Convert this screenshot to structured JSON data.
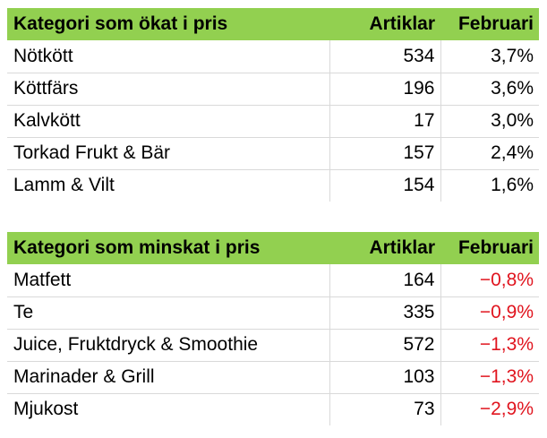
{
  "increased": {
    "headers": [
      "Kategori som ökat i pris",
      "Artiklar",
      "Februari"
    ],
    "rows": [
      [
        "Nötkött",
        "534",
        "3,7%"
      ],
      [
        "Köttfärs",
        "196",
        "3,6%"
      ],
      [
        "Kalvkött",
        "17",
        "3,0%"
      ],
      [
        "Torkad Frukt & Bär",
        "157",
        "2,4%"
      ],
      [
        "Lamm & Vilt",
        "154",
        "1,6%"
      ]
    ]
  },
  "decreased": {
    "headers": [
      "Kategori som minskat i pris",
      "Artiklar",
      "Februari"
    ],
    "rows": [
      [
        "Matfett",
        "164",
        "−0,8%"
      ],
      [
        "Te",
        "335",
        "−0,9%"
      ],
      [
        "Juice, Fruktdryck & Smoothie",
        "572",
        "−1,3%"
      ],
      [
        "Marinader & Grill",
        "103",
        "−1,3%"
      ],
      [
        "Mjukost",
        "73",
        "−2,9%"
      ]
    ]
  },
  "colors": {
    "header_bg": "#92d050",
    "negative_text": "#e0141e",
    "grid_line": "#d9d9d9"
  }
}
